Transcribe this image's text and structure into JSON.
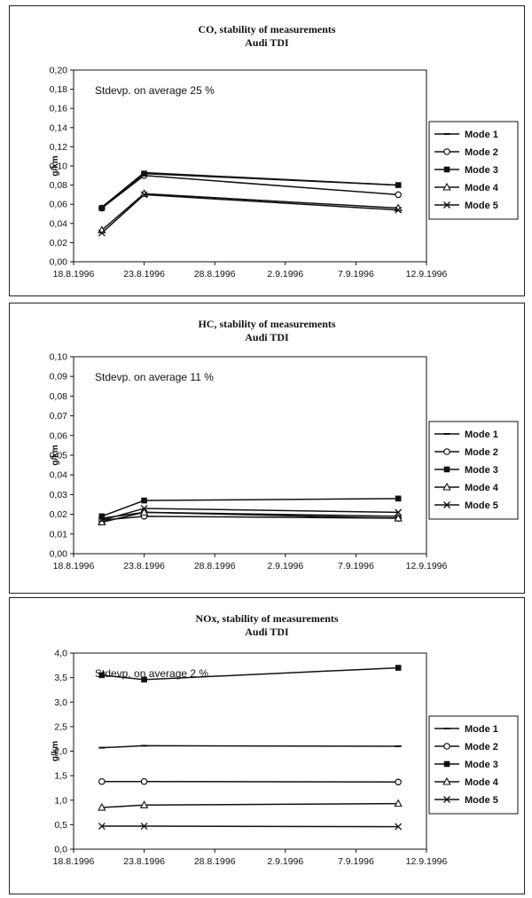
{
  "chart_data": [
    {
      "type": "line",
      "title": "CO, stability of measurements",
      "subtitle": "Audi TDI",
      "ylabel": "g/km",
      "xlabel": "",
      "annotation": "Stdevp. on average 25 %",
      "x_ticks": [
        "18.8.1996",
        "23.8.1996",
        "28.8.1996",
        "2.9.1996",
        "7.9.1996",
        "12.9.1996"
      ],
      "y_ticks": [
        "0,00",
        "0,02",
        "0,04",
        "0,06",
        "0,08",
        "0,10",
        "0,12",
        "0,14",
        "0,16",
        "0,18",
        "0,20"
      ],
      "ylim": [
        0,
        0.2
      ],
      "x_dates": [
        "20.8.1996",
        "23.8.1996",
        "10.9.1996"
      ],
      "series": [
        {
          "name": "Mode 1",
          "marker": "dash",
          "values": [
            0.057,
            0.093,
            0.08
          ]
        },
        {
          "name": "Mode 2",
          "marker": "circle",
          "values": [
            0.056,
            0.09,
            0.07
          ]
        },
        {
          "name": "Mode 3",
          "marker": "square",
          "values": [
            0.056,
            0.092,
            0.08
          ]
        },
        {
          "name": "Mode 4",
          "marker": "triangle",
          "values": [
            0.033,
            0.071,
            0.056
          ]
        },
        {
          "name": "Mode 5",
          "marker": "x",
          "values": [
            0.03,
            0.07,
            0.054
          ]
        }
      ]
    },
    {
      "type": "line",
      "title": "HC, stability of measurements",
      "subtitle": "Audi TDI",
      "ylabel": "g/km",
      "xlabel": "",
      "annotation": "Stdevp. on average 11 %",
      "x_ticks": [
        "18.8.1996",
        "23.8.1996",
        "28.8.1996",
        "2.9.1996",
        "7.9.1996",
        "12.9.1996"
      ],
      "y_ticks": [
        "0,00",
        "0,01",
        "0,02",
        "0,03",
        "0,04",
        "0,05",
        "0,06",
        "0,07",
        "0,08",
        "0,09",
        "0,10"
      ],
      "ylim": [
        0,
        0.1
      ],
      "x_dates": [
        "20.8.1996",
        "23.8.1996",
        "10.9.1996"
      ],
      "series": [
        {
          "name": "Mode 1",
          "marker": "dash",
          "values": [
            0.018,
            0.021,
            0.019
          ]
        },
        {
          "name": "Mode 2",
          "marker": "circle",
          "values": [
            0.017,
            0.019,
            0.018
          ]
        },
        {
          "name": "Mode 3",
          "marker": "square",
          "values": [
            0.019,
            0.027,
            0.028
          ]
        },
        {
          "name": "Mode 4",
          "marker": "triangle",
          "values": [
            0.016,
            0.021,
            0.018
          ]
        },
        {
          "name": "Mode 5",
          "marker": "x",
          "values": [
            0.017,
            0.023,
            0.021
          ]
        }
      ]
    },
    {
      "type": "line",
      "title": "NOx, stability of measurements",
      "subtitle": "Audi TDI",
      "ylabel": "g/km",
      "xlabel": "",
      "annotation": "Stdevp. on average 2 %",
      "x_ticks": [
        "18.8.1996",
        "23.8.1996",
        "28.8.1996",
        "2.9.1996",
        "7.9.1996",
        "12.9.1996"
      ],
      "y_ticks": [
        "0,0",
        "0,5",
        "1,0",
        "1,5",
        "2,0",
        "2,5",
        "3,0",
        "3,5",
        "4,0"
      ],
      "ylim": [
        0,
        4
      ],
      "x_dates": [
        "20.8.1996",
        "23.8.1996",
        "10.9.1996"
      ],
      "series": [
        {
          "name": "Mode 1",
          "marker": "dash",
          "values": [
            2.07,
            2.11,
            2.1
          ]
        },
        {
          "name": "Mode 2",
          "marker": "circle",
          "values": [
            1.38,
            1.38,
            1.37
          ]
        },
        {
          "name": "Mode 3",
          "marker": "square",
          "values": [
            3.55,
            3.46,
            3.7
          ]
        },
        {
          "name": "Mode 4",
          "marker": "triangle",
          "values": [
            0.85,
            0.9,
            0.93
          ]
        },
        {
          "name": "Mode 5",
          "marker": "x",
          "values": [
            0.47,
            0.47,
            0.46
          ]
        }
      ]
    }
  ]
}
